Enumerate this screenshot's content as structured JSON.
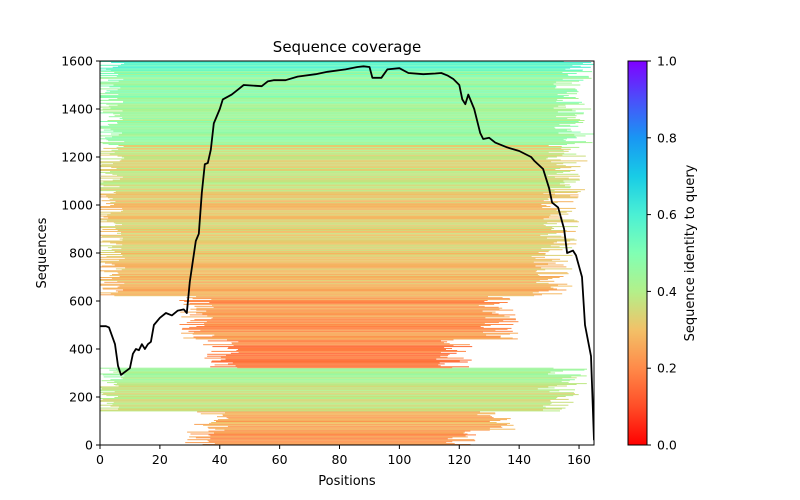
{
  "chart_data": {
    "type": "heatmap",
    "title": "Sequence coverage",
    "xlabel": "Positions",
    "ylabel": "Sequences",
    "xlim": [
      0,
      165
    ],
    "ylim": [
      0,
      1600
    ],
    "x_ticks": [
      "0",
      "20",
      "40",
      "60",
      "80",
      "100",
      "120",
      "140",
      "160"
    ],
    "x_tick_values": [
      0,
      20,
      40,
      60,
      80,
      100,
      120,
      140,
      160
    ],
    "y_ticks": [
      "0",
      "200",
      "400",
      "600",
      "800",
      "1000",
      "1200",
      "1400",
      "1600"
    ],
    "y_tick_values": [
      0,
      200,
      400,
      600,
      800,
      1000,
      1200,
      1400,
      1600
    ],
    "colorbar": {
      "label": "Sequence identity to query",
      "colormap": "rainbow_r",
      "range": [
        0.0,
        1.0
      ],
      "ticks": [
        "0.0",
        "0.2",
        "0.4",
        "0.6",
        "0.8",
        "1.0"
      ],
      "tick_values": [
        0.0,
        0.2,
        0.4,
        0.6,
        0.8,
        1.0
      ]
    },
    "coverage_bands": [
      {
        "y_from": 0,
        "y_to": 60,
        "x_from": 30,
        "x_to": 128,
        "identity": 0.22
      },
      {
        "y_from": 60,
        "y_to": 140,
        "x_from": 35,
        "x_to": 140,
        "identity": 0.27
      },
      {
        "y_from": 140,
        "y_to": 250,
        "x_from": 0,
        "x_to": 160,
        "identity": 0.36
      },
      {
        "y_from": 250,
        "y_to": 320,
        "x_from": 0,
        "x_to": 163,
        "identity": 0.42
      },
      {
        "y_from": 320,
        "y_to": 440,
        "x_from": 38,
        "x_to": 125,
        "identity": 0.18
      },
      {
        "y_from": 440,
        "y_to": 620,
        "x_from": 30,
        "x_to": 140,
        "identity": 0.23
      },
      {
        "y_from": 620,
        "y_to": 800,
        "x_from": 0,
        "x_to": 158,
        "identity": 0.29
      },
      {
        "y_from": 800,
        "y_to": 1050,
        "x_from": 0,
        "x_to": 160,
        "identity": 0.32
      },
      {
        "y_from": 1050,
        "y_to": 1250,
        "x_from": 0,
        "x_to": 163,
        "identity": 0.36
      },
      {
        "y_from": 1250,
        "y_to": 1450,
        "x_from": 0,
        "x_to": 165,
        "identity": 0.45
      },
      {
        "y_from": 1450,
        "y_to": 1560,
        "x_from": 0,
        "x_to": 165,
        "identity": 0.47
      },
      {
        "y_from": 1560,
        "y_to": 1600,
        "x_from": 0,
        "x_to": 165,
        "identity": 0.56
      }
    ],
    "series": [
      {
        "name": "coverage",
        "color": "#000000",
        "x": [
          0,
          2,
          3,
          5,
          6,
          7,
          10,
          11,
          12,
          13,
          14,
          15,
          16,
          17,
          18,
          20,
          22,
          24,
          26,
          28,
          29,
          30,
          32,
          33,
          34,
          35,
          36,
          37,
          38,
          40,
          41,
          44,
          46,
          48,
          54,
          56,
          58,
          62,
          66,
          72,
          76,
          82,
          86,
          88,
          90,
          91,
          94,
          96,
          100,
          103,
          108,
          112,
          114,
          116,
          118,
          120,
          121,
          122,
          123,
          125,
          127,
          128,
          130,
          132,
          136,
          140,
          144,
          145,
          148,
          150,
          151,
          153,
          155,
          156,
          158,
          159,
          161,
          162,
          164,
          165
        ],
        "y": [
          495,
          495,
          490,
          420,
          330,
          292,
          320,
          380,
          400,
          395,
          420,
          400,
          420,
          430,
          500,
          530,
          550,
          540,
          560,
          565,
          550,
          680,
          850,
          880,
          1050,
          1170,
          1175,
          1230,
          1340,
          1400,
          1440,
          1460,
          1480,
          1500,
          1495,
          1515,
          1520,
          1520,
          1535,
          1545,
          1555,
          1565,
          1575,
          1578,
          1575,
          1530,
          1530,
          1565,
          1570,
          1550,
          1545,
          1548,
          1550,
          1540,
          1525,
          1500,
          1440,
          1420,
          1460,
          1400,
          1300,
          1275,
          1280,
          1260,
          1240,
          1225,
          1200,
          1185,
          1150,
          1070,
          1010,
          990,
          900,
          800,
          810,
          790,
          700,
          500,
          370,
          20
        ]
      }
    ]
  }
}
